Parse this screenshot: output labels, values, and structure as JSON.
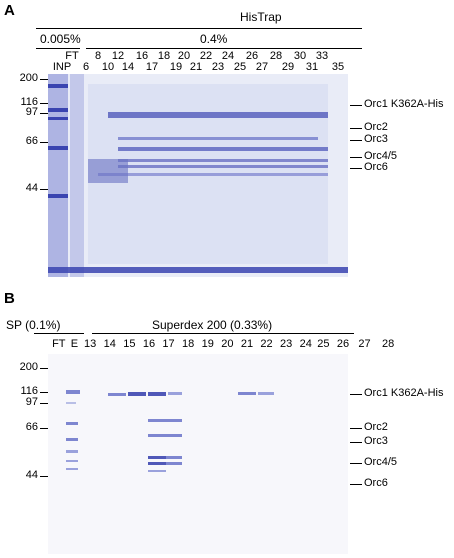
{
  "panelA": {
    "letter": "A",
    "histrap_label": "HisTrap",
    "conc_left": "0.005%",
    "conc_right": "0.4%",
    "lanes_top": [
      "FT",
      "8",
      "12",
      "16",
      "18",
      "20",
      "22",
      "24",
      "26",
      "28",
      "30",
      "33"
    ],
    "lanes_bottom": [
      "INP",
      "6",
      "10",
      "14",
      "17",
      "19",
      "21",
      "23",
      "25",
      "27",
      "29",
      "31",
      "35"
    ],
    "mw_markers": [
      "200",
      "116",
      "97",
      "66",
      "44"
    ],
    "band_labels": [
      "Orc1 K362A-His",
      "Orc2",
      "Orc3",
      "Orc4/5",
      "Orc6"
    ]
  },
  "panelB": {
    "letter": "B",
    "sp_label": "SP (0.1%)",
    "superdex_label": "Superdex 200 (0.33%)",
    "lanes": [
      "FT",
      "E",
      "13",
      "14",
      "15",
      "16",
      "17",
      "18",
      "19",
      "20",
      "21",
      "22",
      "23",
      "24",
      "25",
      "26",
      "27",
      "28"
    ],
    "mw_markers": [
      "200",
      "116",
      "97",
      "66",
      "44"
    ],
    "band_labels": [
      "Orc1 K362A-His",
      "Orc2",
      "Orc3",
      "Orc4/5",
      "Orc6"
    ]
  },
  "colors": {
    "gel_bg_a": "#e8ebf6",
    "gel_bg_b": "#f7f7fb",
    "band_dark": "#3a44b0",
    "band_mid": "#7e86d0",
    "band_light": "#b9bfe6"
  }
}
